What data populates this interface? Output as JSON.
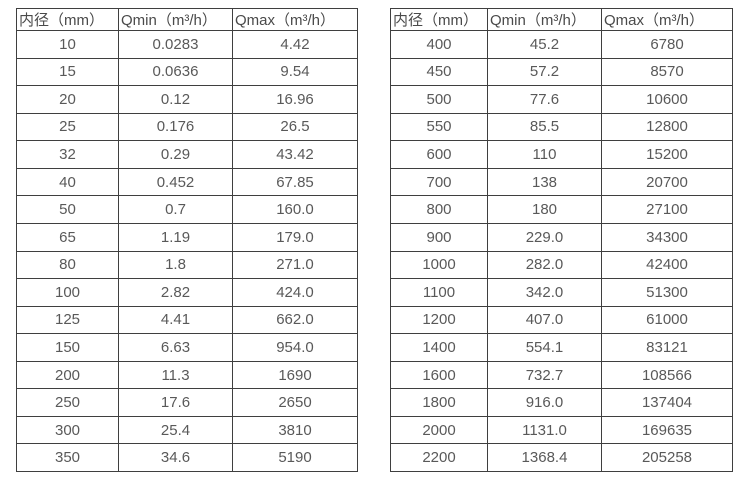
{
  "page": {
    "background": "#ffffff"
  },
  "colors": {
    "border": "#3f3f3f",
    "text": "#595959",
    "header_text": "#4a4a4a"
  },
  "tables": [
    {
      "name": "flow-table-small-diameters",
      "headers": [
        "内径（mm）",
        "Qmin（m³/h）",
        "Qmax（m³/h）"
      ],
      "rows": [
        [
          "10",
          "0.0283",
          "4.42"
        ],
        [
          "15",
          "0.0636",
          "9.54"
        ],
        [
          "20",
          "0.12",
          "16.96"
        ],
        [
          "25",
          "0.176",
          "26.5"
        ],
        [
          "32",
          "0.29",
          "43.42"
        ],
        [
          "40",
          "0.452",
          "67.85"
        ],
        [
          "50",
          "0.7",
          "160.0"
        ],
        [
          "65",
          "1.19",
          "179.0"
        ],
        [
          "80",
          "1.8",
          "271.0"
        ],
        [
          "100",
          "2.82",
          "424.0"
        ],
        [
          "125",
          "4.41",
          "662.0"
        ],
        [
          "150",
          "6.63",
          "954.0"
        ],
        [
          "200",
          "11.3",
          "1690"
        ],
        [
          "250",
          "17.6",
          "2650"
        ],
        [
          "300",
          "25.4",
          "3810"
        ],
        [
          "350",
          "34.6",
          "5190"
        ]
      ]
    },
    {
      "name": "flow-table-large-diameters",
      "headers": [
        "内径（mm）",
        "Qmin（m³/h）",
        "Qmax（m³/h）"
      ],
      "rows": [
        [
          "400",
          "45.2",
          "6780"
        ],
        [
          "450",
          "57.2",
          "8570"
        ],
        [
          "500",
          "77.6",
          "10600"
        ],
        [
          "550",
          "85.5",
          "12800"
        ],
        [
          "600",
          "110",
          "15200"
        ],
        [
          "700",
          "138",
          "20700"
        ],
        [
          "800",
          "180",
          "27100"
        ],
        [
          "900",
          "229.0",
          "34300"
        ],
        [
          "1000",
          "282.0",
          "42400"
        ],
        [
          "1100",
          "342.0",
          "51300"
        ],
        [
          "1200",
          "407.0",
          "61000"
        ],
        [
          "1400",
          "554.1",
          "83121"
        ],
        [
          "1600",
          "732.7",
          "108566"
        ],
        [
          "1800",
          "916.0",
          "137404"
        ],
        [
          "2000",
          "1131.0",
          "169635"
        ],
        [
          "2200",
          "1368.4",
          "205258"
        ]
      ]
    }
  ]
}
